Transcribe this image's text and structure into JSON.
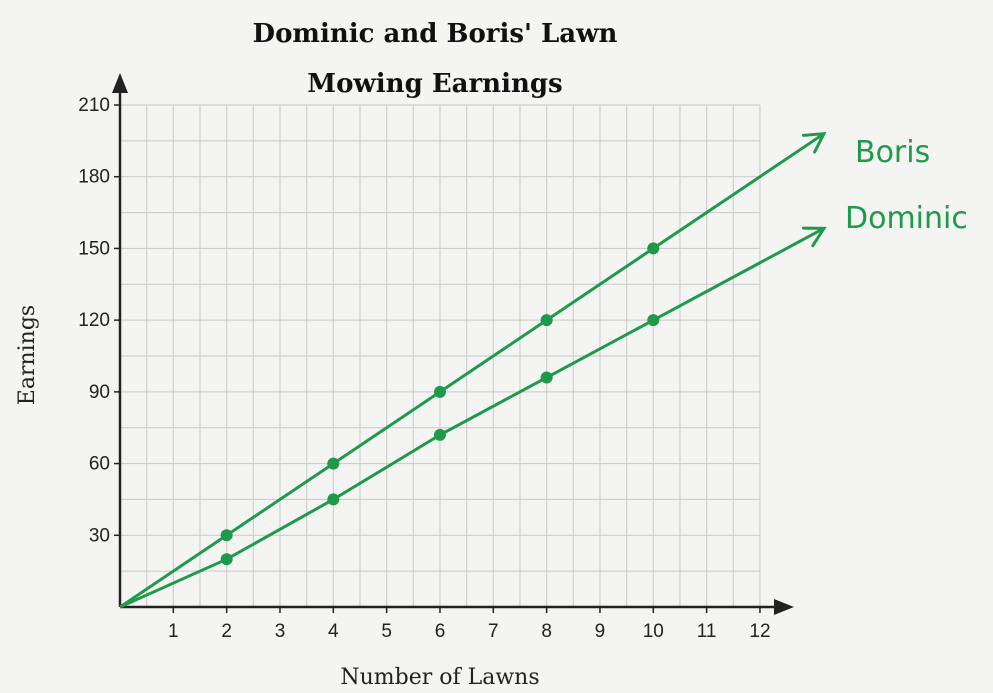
{
  "chart_data": {
    "type": "line",
    "title": "Dominic and Boris' Lawn",
    "subtitle": "Mowing Earnings",
    "xlabel": "Number of Lawns",
    "ylabel": "Earnings",
    "xlim": [
      0,
      12
    ],
    "ylim": [
      0,
      210
    ],
    "x_ticks": [
      "1",
      "2",
      "3",
      "4",
      "5",
      "6",
      "7",
      "8",
      "9",
      "10",
      "11",
      "12"
    ],
    "y_ticks": [
      "30",
      "60",
      "90",
      "120",
      "150",
      "180",
      "210"
    ],
    "grid": true,
    "series": [
      {
        "name": "Boris",
        "x": [
          0,
          2,
          4,
          6,
          8,
          10
        ],
        "y": [
          0,
          30,
          60,
          90,
          120,
          150
        ],
        "color": "#1f9a4a"
      },
      {
        "name": "Dominic",
        "x": [
          0,
          2,
          4,
          6,
          8,
          10
        ],
        "y": [
          0,
          20,
          45,
          72,
          96,
          120
        ],
        "color": "#1f9a4a"
      }
    ]
  }
}
